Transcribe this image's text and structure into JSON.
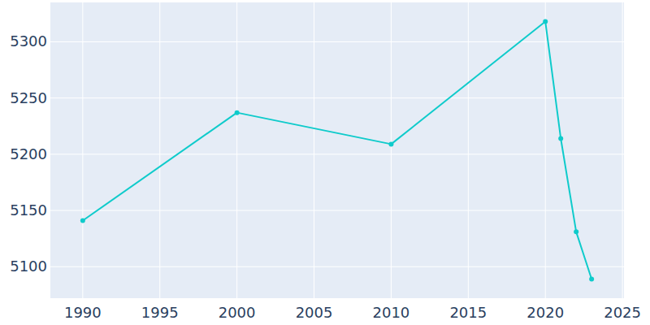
{
  "chart_data": {
    "type": "line",
    "x": [
      1990,
      2000,
      2010,
      2020,
      2021,
      2022,
      2023
    ],
    "values": [
      5141,
      5237,
      5209,
      5318,
      5214,
      5131,
      5089
    ],
    "color": "#0fcbcb",
    "marker": "circle",
    "xlim": [
      1987.9,
      2025.1
    ],
    "xticks": [
      1990,
      1995,
      2000,
      2005,
      2010,
      2015,
      2020,
      2025
    ],
    "ylim": [
      5072,
      5335
    ],
    "yticks": [
      5100,
      5150,
      5200,
      5250,
      5300
    ],
    "grid": true
  }
}
